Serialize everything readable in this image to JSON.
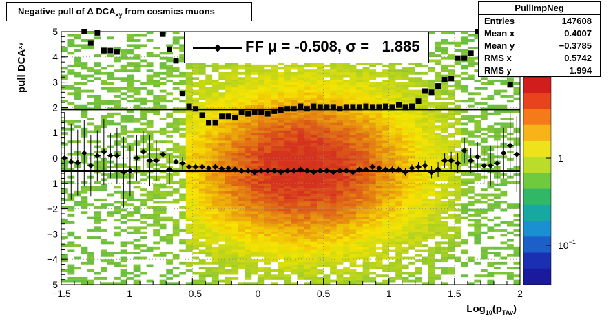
{
  "chart_data": {
    "type": "heatmap",
    "title": "Negative pull of Δ DCA_xy from cosmics muons",
    "xlabel": "Log10(p_TAv)",
    "ylabel": "pull DCA_xy",
    "xlim": [
      -1.5,
      2.0
    ],
    "ylim": [
      -5,
      5
    ],
    "x_ticks": [
      "−1.5",
      "−1",
      "−0.5",
      "0",
      "0.5",
      "1",
      "1.5",
      "2"
    ],
    "y_ticks": [
      "−5",
      "−4",
      "−3",
      "−2",
      "−1",
      "0",
      "1",
      "2",
      "3",
      "4",
      "5"
    ],
    "colorbar": {
      "scale": "log",
      "labels": [
        "1",
        "10^−1"
      ],
      "label_values": [
        1,
        0.1
      ]
    },
    "grid": true,
    "legend": {
      "label": "FF μ = -0.508, σ =   1.885",
      "placement": "top-center"
    },
    "fit_lines": {
      "mean": -0.508,
      "sigma": 1.885
    },
    "series": [
      {
        "name": "FF",
        "points": [
          {
            "x": -1.475,
            "y": 0.0,
            "err": 1.8
          },
          {
            "x": -1.425,
            "y": -0.15,
            "err": 1.5
          },
          {
            "x": -1.375,
            "y": -0.18,
            "err": 1.3
          },
          {
            "x": -1.325,
            "y": 0.2,
            "err": 1.3
          },
          {
            "x": -1.275,
            "y": -0.3,
            "err": 1.2
          },
          {
            "x": -1.225,
            "y": 0.1,
            "err": 1.0
          },
          {
            "x": -1.175,
            "y": 0.25,
            "err": 1.3
          },
          {
            "x": -1.125,
            "y": 0.1,
            "err": 0.9
          },
          {
            "x": -1.075,
            "y": 0.1,
            "err": 1.1
          },
          {
            "x": -1.025,
            "y": -0.55,
            "err": 1.4
          },
          {
            "x": -0.975,
            "y": -0.5,
            "err": 1.0
          },
          {
            "x": -0.925,
            "y": 0.0,
            "err": 0.9
          },
          {
            "x": -0.875,
            "y": 0.25,
            "err": 0.8
          },
          {
            "x": -0.825,
            "y": -0.1,
            "err": 1.0
          },
          {
            "x": -0.775,
            "y": -0.1,
            "err": 0.8
          },
          {
            "x": -0.725,
            "y": 0.15,
            "err": 0.7
          },
          {
            "x": -0.675,
            "y": -0.45,
            "err": 0.6
          },
          {
            "x": -0.625,
            "y": -0.15,
            "err": 0.3
          },
          {
            "x": -0.575,
            "y": -0.2,
            "err": 0.25
          },
          {
            "x": -0.525,
            "y": -0.35,
            "err": 0.2
          },
          {
            "x": -0.475,
            "y": -0.35,
            "err": 0.15
          },
          {
            "x": -0.425,
            "y": -0.35,
            "err": 0.15
          },
          {
            "x": -0.375,
            "y": -0.4,
            "err": 0.12
          },
          {
            "x": -0.325,
            "y": -0.35,
            "err": 0.12
          },
          {
            "x": -0.275,
            "y": -0.42,
            "err": 0.1
          },
          {
            "x": -0.225,
            "y": -0.4,
            "err": 0.1
          },
          {
            "x": -0.175,
            "y": -0.45,
            "err": 0.1
          },
          {
            "x": -0.125,
            "y": -0.5,
            "err": 0.1
          },
          {
            "x": -0.075,
            "y": -0.5,
            "err": 0.1
          },
          {
            "x": -0.025,
            "y": -0.55,
            "err": 0.1
          },
          {
            "x": 0.025,
            "y": -0.5,
            "err": 0.1
          },
          {
            "x": 0.075,
            "y": -0.5,
            "err": 0.1
          },
          {
            "x": 0.125,
            "y": -0.5,
            "err": 0.1
          },
          {
            "x": 0.175,
            "y": -0.55,
            "err": 0.1
          },
          {
            "x": 0.225,
            "y": -0.5,
            "err": 0.1
          },
          {
            "x": 0.275,
            "y": -0.5,
            "err": 0.1
          },
          {
            "x": 0.325,
            "y": -0.45,
            "err": 0.1
          },
          {
            "x": 0.375,
            "y": -0.5,
            "err": 0.1
          },
          {
            "x": 0.425,
            "y": -0.55,
            "err": 0.1
          },
          {
            "x": 0.475,
            "y": -0.5,
            "err": 0.1
          },
          {
            "x": 0.525,
            "y": -0.5,
            "err": 0.1
          },
          {
            "x": 0.575,
            "y": -0.55,
            "err": 0.1
          },
          {
            "x": 0.625,
            "y": -0.5,
            "err": 0.1
          },
          {
            "x": 0.675,
            "y": -0.5,
            "err": 0.1
          },
          {
            "x": 0.725,
            "y": -0.55,
            "err": 0.1
          },
          {
            "x": 0.775,
            "y": -0.45,
            "err": 0.1
          },
          {
            "x": 0.825,
            "y": -0.45,
            "err": 0.1
          },
          {
            "x": 0.875,
            "y": -0.35,
            "err": 0.1
          },
          {
            "x": 0.925,
            "y": -0.4,
            "err": 0.1
          },
          {
            "x": 0.975,
            "y": -0.45,
            "err": 0.12
          },
          {
            "x": 1.025,
            "y": -0.45,
            "err": 0.12
          },
          {
            "x": 1.075,
            "y": -0.45,
            "err": 0.12
          },
          {
            "x": 1.125,
            "y": -0.55,
            "err": 0.15
          },
          {
            "x": 1.175,
            "y": -0.4,
            "err": 0.15
          },
          {
            "x": 1.225,
            "y": -0.35,
            "err": 0.2
          },
          {
            "x": 1.275,
            "y": -0.3,
            "err": 0.2
          },
          {
            "x": 1.325,
            "y": -0.55,
            "err": 0.25
          },
          {
            "x": 1.375,
            "y": -0.45,
            "err": 0.3
          },
          {
            "x": 1.425,
            "y": -0.1,
            "err": 0.3
          },
          {
            "x": 1.475,
            "y": -0.1,
            "err": 0.35
          },
          {
            "x": 1.525,
            "y": -0.2,
            "err": 0.4
          },
          {
            "x": 1.575,
            "y": 0.3,
            "err": 0.5
          },
          {
            "x": 1.625,
            "y": -0.1,
            "err": 0.5
          },
          {
            "x": 1.675,
            "y": 0.05,
            "err": 0.6
          },
          {
            "x": 1.725,
            "y": -0.3,
            "err": 0.7
          },
          {
            "x": 1.775,
            "y": -0.3,
            "err": 0.8
          },
          {
            "x": 1.825,
            "y": -0.2,
            "err": 0.9
          },
          {
            "x": 1.875,
            "y": 0.2,
            "err": 1.0
          },
          {
            "x": 1.925,
            "y": 0.5,
            "err": 1.3
          },
          {
            "x": 1.975,
            "y": 0.15,
            "err": 1.5
          }
        ]
      },
      {
        "name": "",
        "points": [
          {
            "x": -1.325,
            "y": 5.0
          },
          {
            "x": -1.275,
            "y": 4.55
          },
          {
            "x": -1.225,
            "y": 4.95
          },
          {
            "x": -1.175,
            "y": 4.25
          },
          {
            "x": -1.125,
            "y": 4.25
          },
          {
            "x": -1.075,
            "y": 4.2
          },
          {
            "x": -0.725,
            "y": 4.9
          },
          {
            "x": -0.675,
            "y": 4.3
          },
          {
            "x": -0.625,
            "y": 3.85
          },
          {
            "x": -0.575,
            "y": 2.55
          },
          {
            "x": -0.525,
            "y": 2.05
          },
          {
            "x": -0.475,
            "y": 1.95
          },
          {
            "x": -0.425,
            "y": 1.7
          },
          {
            "x": -0.375,
            "y": 1.4
          },
          {
            "x": -0.325,
            "y": 1.4
          },
          {
            "x": -0.275,
            "y": 1.65
          },
          {
            "x": -0.225,
            "y": 1.65
          },
          {
            "x": -0.175,
            "y": 1.6
          },
          {
            "x": -0.125,
            "y": 1.8
          },
          {
            "x": -0.075,
            "y": 1.75
          },
          {
            "x": -0.025,
            "y": 1.8
          },
          {
            "x": 0.025,
            "y": 1.8
          },
          {
            "x": 0.075,
            "y": 1.75
          },
          {
            "x": 0.125,
            "y": 1.85
          },
          {
            "x": 0.175,
            "y": 1.9
          },
          {
            "x": 0.225,
            "y": 1.95
          },
          {
            "x": 0.275,
            "y": 1.95
          },
          {
            "x": 0.325,
            "y": 2.05
          },
          {
            "x": 0.375,
            "y": 1.95
          },
          {
            "x": 0.425,
            "y": 2.05
          },
          {
            "x": 0.475,
            "y": 2.0
          },
          {
            "x": 0.525,
            "y": 2.0
          },
          {
            "x": 0.575,
            "y": 2.0
          },
          {
            "x": 0.625,
            "y": 1.95
          },
          {
            "x": 0.675,
            "y": 2.0
          },
          {
            "x": 0.725,
            "y": 2.0
          },
          {
            "x": 0.775,
            "y": 2.0
          },
          {
            "x": 0.825,
            "y": 2.05
          },
          {
            "x": 0.875,
            "y": 2.0
          },
          {
            "x": 0.925,
            "y": 2.0
          },
          {
            "x": 0.975,
            "y": 2.05
          },
          {
            "x": 1.025,
            "y": 2.0
          },
          {
            "x": 1.075,
            "y": 2.1
          },
          {
            "x": 1.125,
            "y": 2.0
          },
          {
            "x": 1.175,
            "y": 2.05
          },
          {
            "x": 1.225,
            "y": 2.25
          },
          {
            "x": 1.275,
            "y": 2.65
          },
          {
            "x": 1.325,
            "y": 2.6
          },
          {
            "x": 1.375,
            "y": 2.85
          },
          {
            "x": 1.425,
            "y": 3.1
          },
          {
            "x": 1.475,
            "y": 3.15
          },
          {
            "x": 1.525,
            "y": 3.95
          },
          {
            "x": 1.575,
            "y": 3.95
          },
          {
            "x": 1.625,
            "y": 4.15
          },
          {
            "x": 1.675,
            "y": 5.0
          },
          {
            "x": 1.775,
            "y": 4.25
          },
          {
            "x": 1.875,
            "y": 4.2
          },
          {
            "x": 1.925,
            "y": 2.9
          }
        ]
      }
    ]
  },
  "stats": {
    "name": "PullImpNeg",
    "rows": [
      {
        "key": "Entries",
        "value": "147608"
      },
      {
        "key": "Mean x",
        "value": "0.4007"
      },
      {
        "key": "Mean y",
        "value": "−0.3785"
      },
      {
        "key": "RMS x",
        "value": "0.5742"
      },
      {
        "key": "RMS y",
        "value": "1.994"
      }
    ]
  },
  "colors": {
    "axis": "#000000",
    "grid": "#888888",
    "heat_low": "#6bbf3f",
    "heat_mid": "#f7e400",
    "heat_high": "#d5321e",
    "markers": "#000000"
  }
}
